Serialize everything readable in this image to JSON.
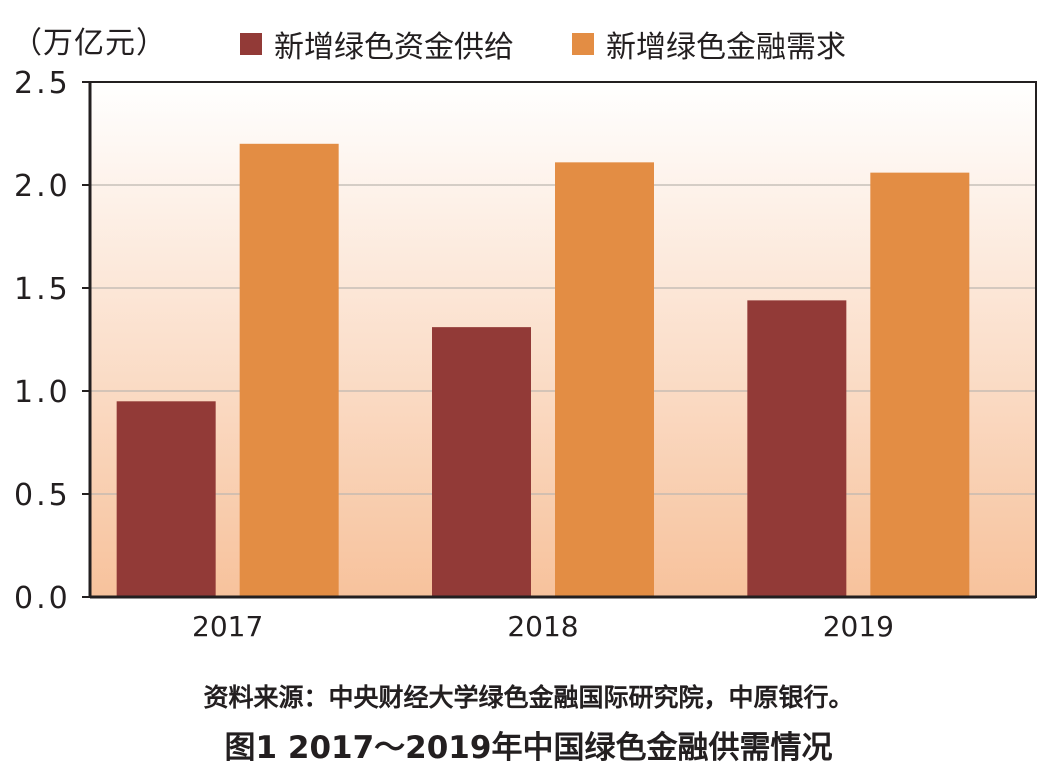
{
  "chart_data": {
    "type": "bar",
    "unit_label": "（万亿元）",
    "categories": [
      "2017",
      "2018",
      "2019"
    ],
    "series": [
      {
        "name": "新增绿色资金供给",
        "color": "#923a37",
        "values": [
          0.95,
          1.31,
          1.44
        ]
      },
      {
        "name": "新增绿色金融需求",
        "color": "#e38d44",
        "values": [
          2.2,
          2.11,
          2.06
        ]
      }
    ],
    "ylim": [
      0,
      2.5
    ],
    "yticks": [
      "0.0",
      "0.5",
      "1.0",
      "1.5",
      "2.0",
      "2.5"
    ],
    "grid": true,
    "legend_position": "top",
    "background_gradient": [
      "#ffffff",
      "#f7c29c"
    ]
  },
  "source_text": "资料来源：中央财经大学绿色金融国际研究院，中原银行。",
  "figure_title": "图1  2017～2019年中国绿色金融供需情况"
}
